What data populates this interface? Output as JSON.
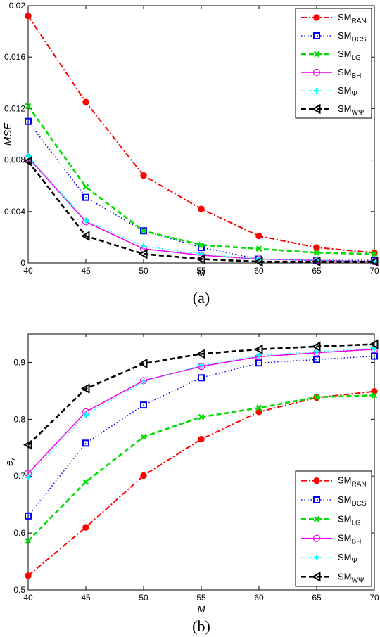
{
  "colors": {
    "SM_RAN": "#ff0000",
    "SM_DCS": "#0000ff",
    "SM_LG": "#00dd00",
    "SM_BH": "#ee00ee",
    "SM_Psi": "#00ffff",
    "SM_WPsi": "#000000"
  },
  "chart_data": [
    {
      "type": "line",
      "caption": "(a)",
      "xlabel": "M",
      "ylabel": "MSE",
      "x": [
        40,
        45,
        50,
        55,
        60,
        65,
        70
      ],
      "xlim": [
        40,
        70
      ],
      "ylim": [
        0,
        0.02
      ],
      "xticks": [
        "40",
        "45",
        "50",
        "55",
        "60",
        "65",
        "70"
      ],
      "yticks": [
        "0",
        "0.004",
        "0.008",
        "0.012",
        "0.016",
        "0.02"
      ],
      "legend_position": "top-right",
      "grid": false,
      "series": [
        {
          "key": "SM_RAN",
          "base": "SM",
          "sub": "RAN",
          "marker": "circle-filled",
          "dash": "dashdot",
          "values": [
            0.0192,
            0.0125,
            0.0068,
            0.0042,
            0.0021,
            0.0012,
            0.0008
          ]
        },
        {
          "key": "SM_DCS",
          "base": "SM",
          "sub": "DCS",
          "marker": "square",
          "dash": "dotted",
          "values": [
            0.011,
            0.0051,
            0.0025,
            0.0012,
            0.0003,
            0.0002,
            0.0002
          ]
        },
        {
          "key": "SM_LG",
          "base": "SM",
          "sub": "LG",
          "marker": "x",
          "dash": "dashed",
          "values": [
            0.0122,
            0.0059,
            0.0025,
            0.0014,
            0.0011,
            0.0008,
            0.0007
          ]
        },
        {
          "key": "SM_BH",
          "base": "SM",
          "sub": "BH",
          "marker": "circle-open",
          "dash": "solid",
          "values": [
            0.0082,
            0.0032,
            0.0011,
            0.0006,
            0.0003,
            0.0002,
            0.0001
          ]
        },
        {
          "key": "SM_Psi",
          "base": "SM",
          "sub": "Ψ",
          "marker": "plus",
          "dash": "dotted",
          "values": [
            0.0083,
            0.0033,
            0.0013,
            0.0007,
            0.0003,
            0.0002,
            0.0001
          ]
        },
        {
          "key": "SM_WPsi",
          "base": "SM",
          "sub": "WΨ",
          "marker": "triangle-left",
          "dash": "dashed",
          "values": [
            0.0079,
            0.0021,
            0.0007,
            0.0003,
            0.0001,
            0.0001,
            0.0001
          ]
        }
      ]
    },
    {
      "type": "line",
      "caption": "(b)",
      "xlabel": "M",
      "ylabel": "e",
      "ylabel_sub": "r",
      "x": [
        40,
        45,
        50,
        55,
        60,
        65,
        70
      ],
      "xlim": [
        40,
        70
      ],
      "ylim": [
        0.5,
        0.95
      ],
      "xticks": [
        "40",
        "45",
        "50",
        "55",
        "60",
        "65",
        "70"
      ],
      "yticks": [
        "0.5",
        "0.6",
        "0.7",
        "0.8",
        "0.9"
      ],
      "legend_position": "bottom-right",
      "grid": false,
      "series": [
        {
          "key": "SM_RAN",
          "base": "SM",
          "sub": "RAN",
          "marker": "circle-filled",
          "dash": "dashdot",
          "values": [
            0.525,
            0.61,
            0.701,
            0.765,
            0.813,
            0.838,
            0.849
          ]
        },
        {
          "key": "SM_DCS",
          "base": "SM",
          "sub": "DCS",
          "marker": "square",
          "dash": "dotted",
          "values": [
            0.63,
            0.758,
            0.825,
            0.873,
            0.899,
            0.905,
            0.911
          ]
        },
        {
          "key": "SM_LG",
          "base": "SM",
          "sub": "LG",
          "marker": "x",
          "dash": "dashed",
          "values": [
            0.586,
            0.69,
            0.769,
            0.804,
            0.82,
            0.839,
            0.842
          ]
        },
        {
          "key": "SM_BH",
          "base": "SM",
          "sub": "BH",
          "marker": "circle-open",
          "dash": "solid",
          "values": [
            0.705,
            0.813,
            0.868,
            0.893,
            0.91,
            0.917,
            0.923
          ]
        },
        {
          "key": "SM_Psi",
          "base": "SM",
          "sub": "Ψ",
          "marker": "plus",
          "dash": "dotted",
          "values": [
            0.698,
            0.808,
            0.866,
            0.895,
            0.912,
            0.919,
            0.925
          ]
        },
        {
          "key": "SM_WPsi",
          "base": "SM",
          "sub": "WΨ",
          "marker": "triangle-left",
          "dash": "dashed",
          "values": [
            0.755,
            0.854,
            0.898,
            0.915,
            0.923,
            0.928,
            0.932
          ]
        }
      ]
    }
  ]
}
